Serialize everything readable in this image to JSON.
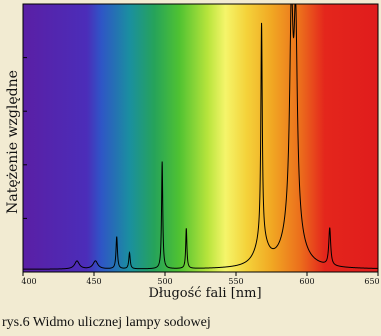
{
  "caption": "rys.6 Widmo ulicznej lampy sodowej",
  "chart_data": {
    "type": "line",
    "title": "",
    "xlabel": "Długość fali [nm]",
    "ylabel": "Natężenie względne",
    "xlim": [
      400,
      650
    ],
    "ylim": [
      0,
      1
    ],
    "x_ticks": [
      400,
      450,
      500,
      550,
      600,
      650
    ],
    "y_ticks": [
      0,
      0.2,
      0.4,
      0.6,
      0.8
    ],
    "grid": false,
    "background": "visible spectrum gradient",
    "line_color": "#000000",
    "baseline": 0.01,
    "peaks": [
      {
        "x": 438,
        "height": 0.03,
        "width": 2
      },
      {
        "x": 451,
        "height": 0.03,
        "width": 2
      },
      {
        "x": 466,
        "height": 0.12,
        "width": 0.6
      },
      {
        "x": 475,
        "height": 0.06,
        "width": 0.6
      },
      {
        "x": 498,
        "height": 0.4,
        "width": 0.5
      },
      {
        "x": 515,
        "height": 0.15,
        "width": 0.5
      },
      {
        "x": 568,
        "height": 0.8,
        "width": 0.6
      },
      {
        "x": 568,
        "height": 0.1,
        "width": 5
      },
      {
        "x": 589,
        "height": 0.72,
        "width": 1.4
      },
      {
        "x": 592,
        "height": 0.7,
        "width": 1.4
      },
      {
        "x": 590,
        "height": 0.2,
        "width": 6
      },
      {
        "x": 616,
        "height": 0.14,
        "width": 0.8
      }
    ]
  }
}
